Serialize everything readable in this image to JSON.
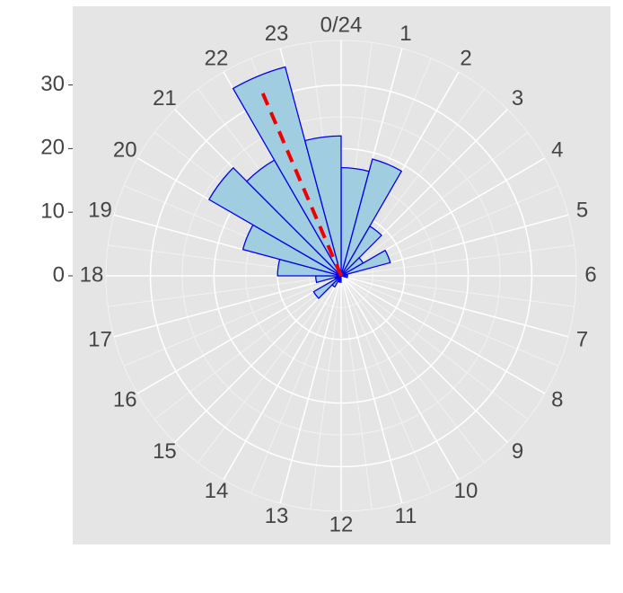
{
  "chart_data": {
    "type": "rose",
    "categories": [
      {
        "value": 0,
        "label": "0/24"
      },
      1,
      2,
      3,
      4,
      5,
      6,
      7,
      8,
      9,
      10,
      11,
      12,
      13,
      14,
      15,
      16,
      17,
      18,
      19,
      20,
      21,
      22,
      23
    ],
    "values": [
      17,
      19,
      9,
      4,
      8,
      1,
      1,
      0,
      0,
      0,
      0,
      0,
      1,
      1,
      2,
      5,
      1,
      4,
      10,
      16,
      24,
      21,
      34,
      22
    ],
    "color": "#a1cde0",
    "edge_color": "#0000ee",
    "ylim": [
      0,
      37
    ],
    "yticks": [
      0,
      10,
      20,
      30
    ],
    "mean_direction": 22.45,
    "mean_length": 32,
    "mean_color": "#ee0000",
    "grid": true
  }
}
